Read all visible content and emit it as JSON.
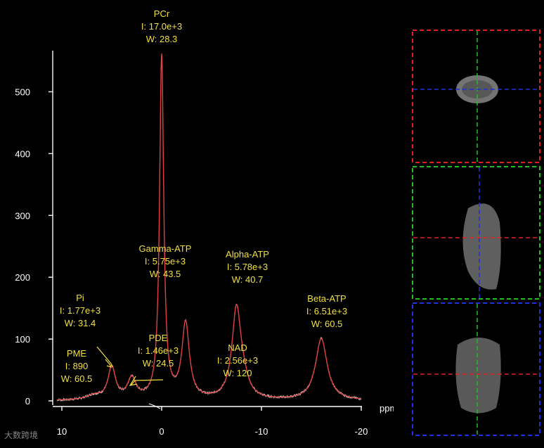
{
  "chart_data": {
    "type": "line",
    "xlabel": "ppm",
    "ylabel": "",
    "xlim": [
      10,
      -20
    ],
    "ylim": [
      0,
      560
    ],
    "x_ticks": [
      10,
      0,
      -10,
      -20
    ],
    "y_ticks": [
      0,
      100,
      200,
      300,
      400,
      500
    ],
    "series": [
      {
        "peaks": [
          {
            "ppm": 6.8,
            "height": 7,
            "width": 0.9
          },
          {
            "ppm": 5.0,
            "height": 52,
            "width": 0.45
          },
          {
            "ppm": 3.0,
            "height": 33,
            "width": 0.5
          },
          {
            "ppm": 0.0,
            "height": 555,
            "width": 0.25
          },
          {
            "ppm": -2.4,
            "height": 122,
            "width": 0.45
          },
          {
            "ppm": -7.5,
            "height": 145,
            "width": 0.55
          },
          {
            "ppm": -8.2,
            "height": 20,
            "width": 0.6
          },
          {
            "ppm": -16.0,
            "height": 100,
            "width": 0.7
          }
        ]
      }
    ],
    "annotations": [
      {
        "name": "PCr",
        "integral": "I: 17.0e+3",
        "width": "W: 28.3"
      },
      {
        "name": "Gamma-ATP",
        "integral": "I: 5.75e+3",
        "width": "W: 43.5"
      },
      {
        "name": "Alpha-ATP",
        "integral": "I: 5.78e+3",
        "width": "W: 40.7"
      },
      {
        "name": "Pi",
        "integral": "I: 1.77e+3",
        "width": "W: 31.4"
      },
      {
        "name": "PME",
        "integral": "I: 890",
        "width": "W: 60.5"
      },
      {
        "name": "PDE",
        "integral": "I: 1.46e+3",
        "width": "W: 24.5"
      },
      {
        "name": "NAD",
        "integral": "I: 2.56e+3",
        "width": "W: 120"
      },
      {
        "name": "Beta-ATP",
        "integral": "I: 6.51e+3",
        "width": "W: 60.5"
      }
    ],
    "colors": {
      "fit": "#e04040",
      "spectrum": "#ffffff",
      "labels": "#f0e040"
    }
  },
  "localizer": {
    "views": [
      "axial",
      "sagittal",
      "coronal"
    ],
    "frame_colors": [
      "#e02020",
      "#20c020",
      "#2030e0"
    ]
  },
  "watermark": "大数跨境"
}
